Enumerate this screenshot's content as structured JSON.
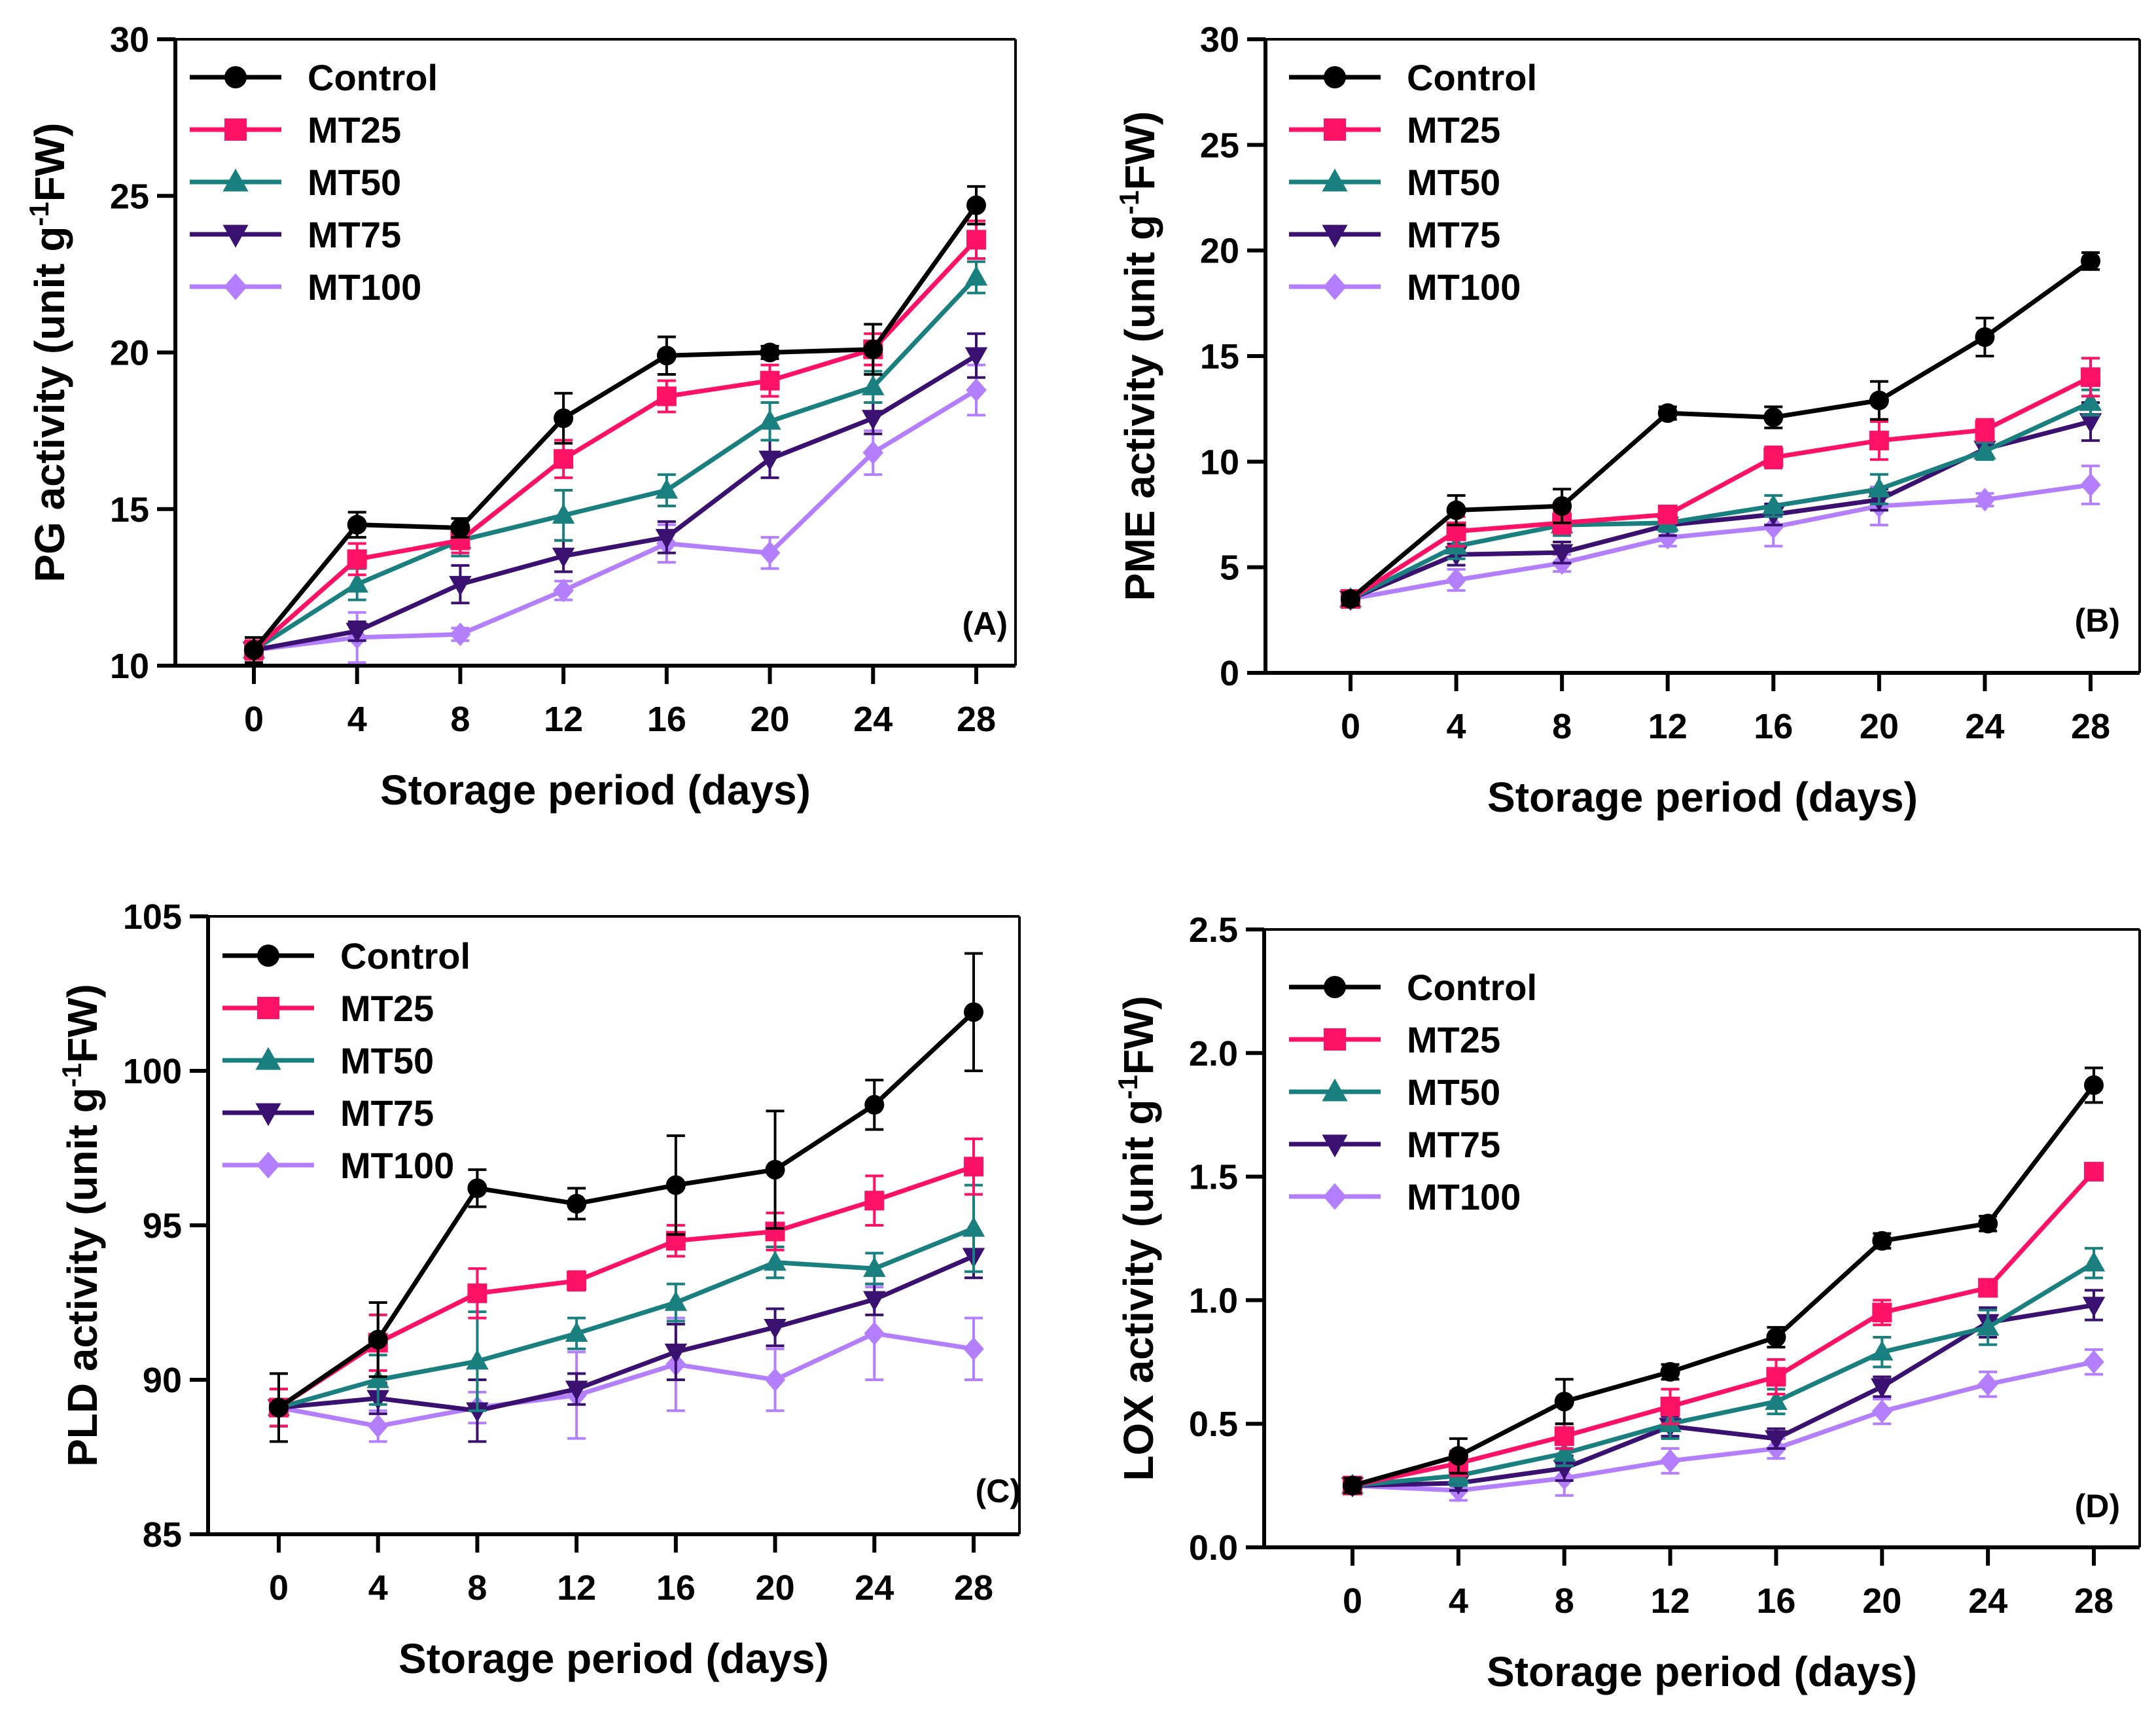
{
  "colors": {
    "Control": "#000000",
    "MT25": "#FF1166",
    "MT50": "#1A7F7F",
    "MT75": "#3A1070",
    "MT100": "#B37FFF"
  },
  "markers": {
    "Control": "circle",
    "MT25": "square",
    "MT50": "triangle-up",
    "MT75": "triangle-down",
    "MT100": "diamond"
  },
  "chart_data": [
    {
      "panel_label": "(A)",
      "type": "line",
      "xlabel": "Storage period (days)",
      "ylabel_parts": [
        "PG activity (unit g",
        "-1",
        "FW)"
      ],
      "x": [
        0,
        4,
        8,
        12,
        16,
        20,
        24,
        28
      ],
      "xticks": [
        "0",
        "4",
        "8",
        "12",
        "16",
        "20",
        "24",
        "28"
      ],
      "ylim": [
        10,
        30
      ],
      "yticks": [
        "10",
        "15",
        "20",
        "25",
        "30"
      ],
      "legend_position": "top-left",
      "series": [
        {
          "name": "Control",
          "values": [
            10.5,
            14.5,
            14.4,
            17.9,
            19.9,
            20.0,
            20.1,
            24.7
          ],
          "errors": [
            0.4,
            0.4,
            0.3,
            0.8,
            0.6,
            0.2,
            0.8,
            0.6
          ]
        },
        {
          "name": "MT25",
          "values": [
            10.5,
            13.4,
            14.0,
            16.6,
            18.6,
            19.1,
            20.1,
            23.6
          ],
          "errors": [
            0.3,
            0.5,
            0.4,
            0.6,
            0.5,
            0.5,
            0.5,
            0.6
          ]
        },
        {
          "name": "MT50",
          "values": [
            10.5,
            12.6,
            14.0,
            14.8,
            15.6,
            17.8,
            18.9,
            22.4
          ],
          "errors": [
            0.3,
            0.5,
            0.5,
            0.8,
            0.5,
            0.6,
            0.5,
            0.5
          ]
        },
        {
          "name": "MT75",
          "values": [
            10.5,
            11.1,
            12.6,
            13.5,
            14.1,
            16.6,
            17.9,
            19.9
          ],
          "errors": [
            0.3,
            0.3,
            0.6,
            0.5,
            0.5,
            0.6,
            0.5,
            0.7
          ]
        },
        {
          "name": "MT100",
          "values": [
            10.5,
            10.9,
            11.0,
            12.4,
            13.9,
            13.6,
            16.8,
            18.8
          ],
          "errors": [
            0.3,
            0.8,
            0.2,
            0.3,
            0.6,
            0.5,
            0.7,
            0.8
          ]
        }
      ]
    },
    {
      "panel_label": "(B)",
      "type": "line",
      "xlabel": "Storage period (days)",
      "ylabel_parts": [
        "PME activity (unit g",
        "-1",
        "FW)"
      ],
      "x": [
        0,
        4,
        8,
        12,
        16,
        20,
        24,
        28
      ],
      "xticks": [
        "0",
        "4",
        "8",
        "12",
        "16",
        "20",
        "24",
        "28"
      ],
      "ylim": [
        0,
        30
      ],
      "yticks": [
        "0",
        "5",
        "10",
        "15",
        "20",
        "25",
        "30"
      ],
      "legend_position": "top-left",
      "series": [
        {
          "name": "Control",
          "values": [
            3.5,
            7.7,
            7.9,
            12.3,
            12.1,
            12.9,
            15.9,
            19.5
          ],
          "errors": [
            0.3,
            0.7,
            0.8,
            0.3,
            0.5,
            0.9,
            0.9,
            0.4
          ]
        },
        {
          "name": "MT25",
          "values": [
            3.5,
            6.7,
            7.1,
            7.5,
            10.2,
            11.0,
            11.5,
            14.0
          ],
          "errors": [
            0.3,
            0.7,
            0.5,
            0.4,
            0.5,
            0.9,
            0.5,
            0.9
          ]
        },
        {
          "name": "MT50",
          "values": [
            3.5,
            6.0,
            7.0,
            7.1,
            7.9,
            8.7,
            10.5,
            12.8
          ],
          "errors": [
            0.3,
            0.6,
            0.5,
            0.4,
            0.5,
            0.7,
            0.4,
            0.6
          ]
        },
        {
          "name": "MT75",
          "values": [
            3.5,
            5.6,
            5.7,
            7.0,
            7.5,
            8.2,
            10.6,
            11.9
          ],
          "errors": [
            0.3,
            0.5,
            0.5,
            0.5,
            0.5,
            0.5,
            0.4,
            0.9
          ]
        },
        {
          "name": "MT100",
          "values": [
            3.5,
            4.4,
            5.2,
            6.4,
            6.9,
            7.9,
            8.2,
            8.9
          ],
          "errors": [
            0.3,
            0.5,
            0.4,
            0.4,
            0.9,
            0.9,
            0.3,
            0.9
          ]
        }
      ]
    },
    {
      "panel_label": "(C)",
      "type": "line",
      "xlabel": "Storage period (days)",
      "ylabel_parts": [
        "PLD activity (unit g",
        "-1",
        "FW)"
      ],
      "x": [
        0,
        4,
        8,
        12,
        16,
        20,
        24,
        28
      ],
      "xticks": [
        "0",
        "4",
        "8",
        "12",
        "16",
        "20",
        "24",
        "28"
      ],
      "ylim": [
        85,
        105
      ],
      "yticks": [
        "85",
        "90",
        "95",
        "100",
        "105"
      ],
      "legend_position": "top-left",
      "series": [
        {
          "name": "Control",
          "values": [
            89.1,
            91.3,
            96.2,
            95.7,
            96.3,
            96.8,
            98.9,
            101.9
          ],
          "errors": [
            1.1,
            1.2,
            0.6,
            0.5,
            1.6,
            1.9,
            0.8,
            1.9
          ]
        },
        {
          "name": "MT25",
          "values": [
            89.1,
            91.2,
            92.8,
            93.2,
            94.5,
            94.8,
            95.8,
            96.9
          ],
          "errors": [
            0.6,
            0.9,
            0.8,
            0.3,
            0.5,
            0.6,
            0.8,
            0.9
          ]
        },
        {
          "name": "MT50",
          "values": [
            89.1,
            90.0,
            90.6,
            91.5,
            92.5,
            93.8,
            93.6,
            94.9
          ],
          "errors": [
            0.6,
            0.8,
            1.6,
            0.5,
            0.6,
            0.5,
            0.5,
            1.4
          ]
        },
        {
          "name": "MT75",
          "values": [
            89.1,
            89.4,
            89.0,
            89.7,
            90.9,
            91.7,
            92.6,
            94.0
          ],
          "errors": [
            0.6,
            0.5,
            1.0,
            0.5,
            0.9,
            0.6,
            0.5,
            0.7
          ]
        },
        {
          "name": "MT100",
          "values": [
            89.1,
            88.5,
            89.1,
            89.5,
            90.5,
            90.0,
            91.5,
            91.0
          ],
          "errors": [
            0.6,
            0.5,
            0.5,
            1.4,
            1.5,
            1.0,
            1.5,
            1.0
          ]
        }
      ]
    },
    {
      "panel_label": "(D)",
      "type": "line",
      "xlabel": "Storage period (days)",
      "ylabel_parts": [
        "LOX activity (unit g",
        "-1",
        "FW)"
      ],
      "x": [
        0,
        4,
        8,
        12,
        16,
        20,
        24,
        28
      ],
      "xticks": [
        "0",
        "4",
        "8",
        "12",
        "16",
        "20",
        "24",
        "28"
      ],
      "ylim": [
        0,
        2.5
      ],
      "yticks": [
        "0.0",
        "0.5",
        "1.0",
        "1.5",
        "2.0",
        "2.5"
      ],
      "legend_position": "top-left",
      "series": [
        {
          "name": "Control",
          "values": [
            0.25,
            0.37,
            0.59,
            0.71,
            0.85,
            1.24,
            1.31,
            1.87
          ],
          "errors": [
            0.03,
            0.07,
            0.09,
            0.03,
            0.04,
            0.03,
            0.03,
            0.07
          ]
        },
        {
          "name": "MT25",
          "values": [
            0.25,
            0.34,
            0.45,
            0.57,
            0.69,
            0.95,
            1.05,
            1.52
          ],
          "errors": [
            0.03,
            0.05,
            0.05,
            0.07,
            0.07,
            0.05,
            0.03,
            0.03
          ]
        },
        {
          "name": "MT50",
          "values": [
            0.25,
            0.29,
            0.38,
            0.5,
            0.59,
            0.79,
            0.89,
            1.15
          ],
          "errors": [
            0.03,
            0.04,
            0.05,
            0.06,
            0.05,
            0.06,
            0.07,
            0.06
          ]
        },
        {
          "name": "MT75",
          "values": [
            0.25,
            0.26,
            0.32,
            0.49,
            0.44,
            0.65,
            0.91,
            0.98
          ],
          "errors": [
            0.03,
            0.03,
            0.05,
            0.04,
            0.04,
            0.04,
            0.06,
            0.06
          ]
        },
        {
          "name": "MT100",
          "values": [
            0.25,
            0.23,
            0.28,
            0.35,
            0.4,
            0.55,
            0.66,
            0.75
          ],
          "errors": [
            0.03,
            0.04,
            0.07,
            0.05,
            0.04,
            0.05,
            0.05,
            0.05
          ]
        }
      ]
    }
  ]
}
